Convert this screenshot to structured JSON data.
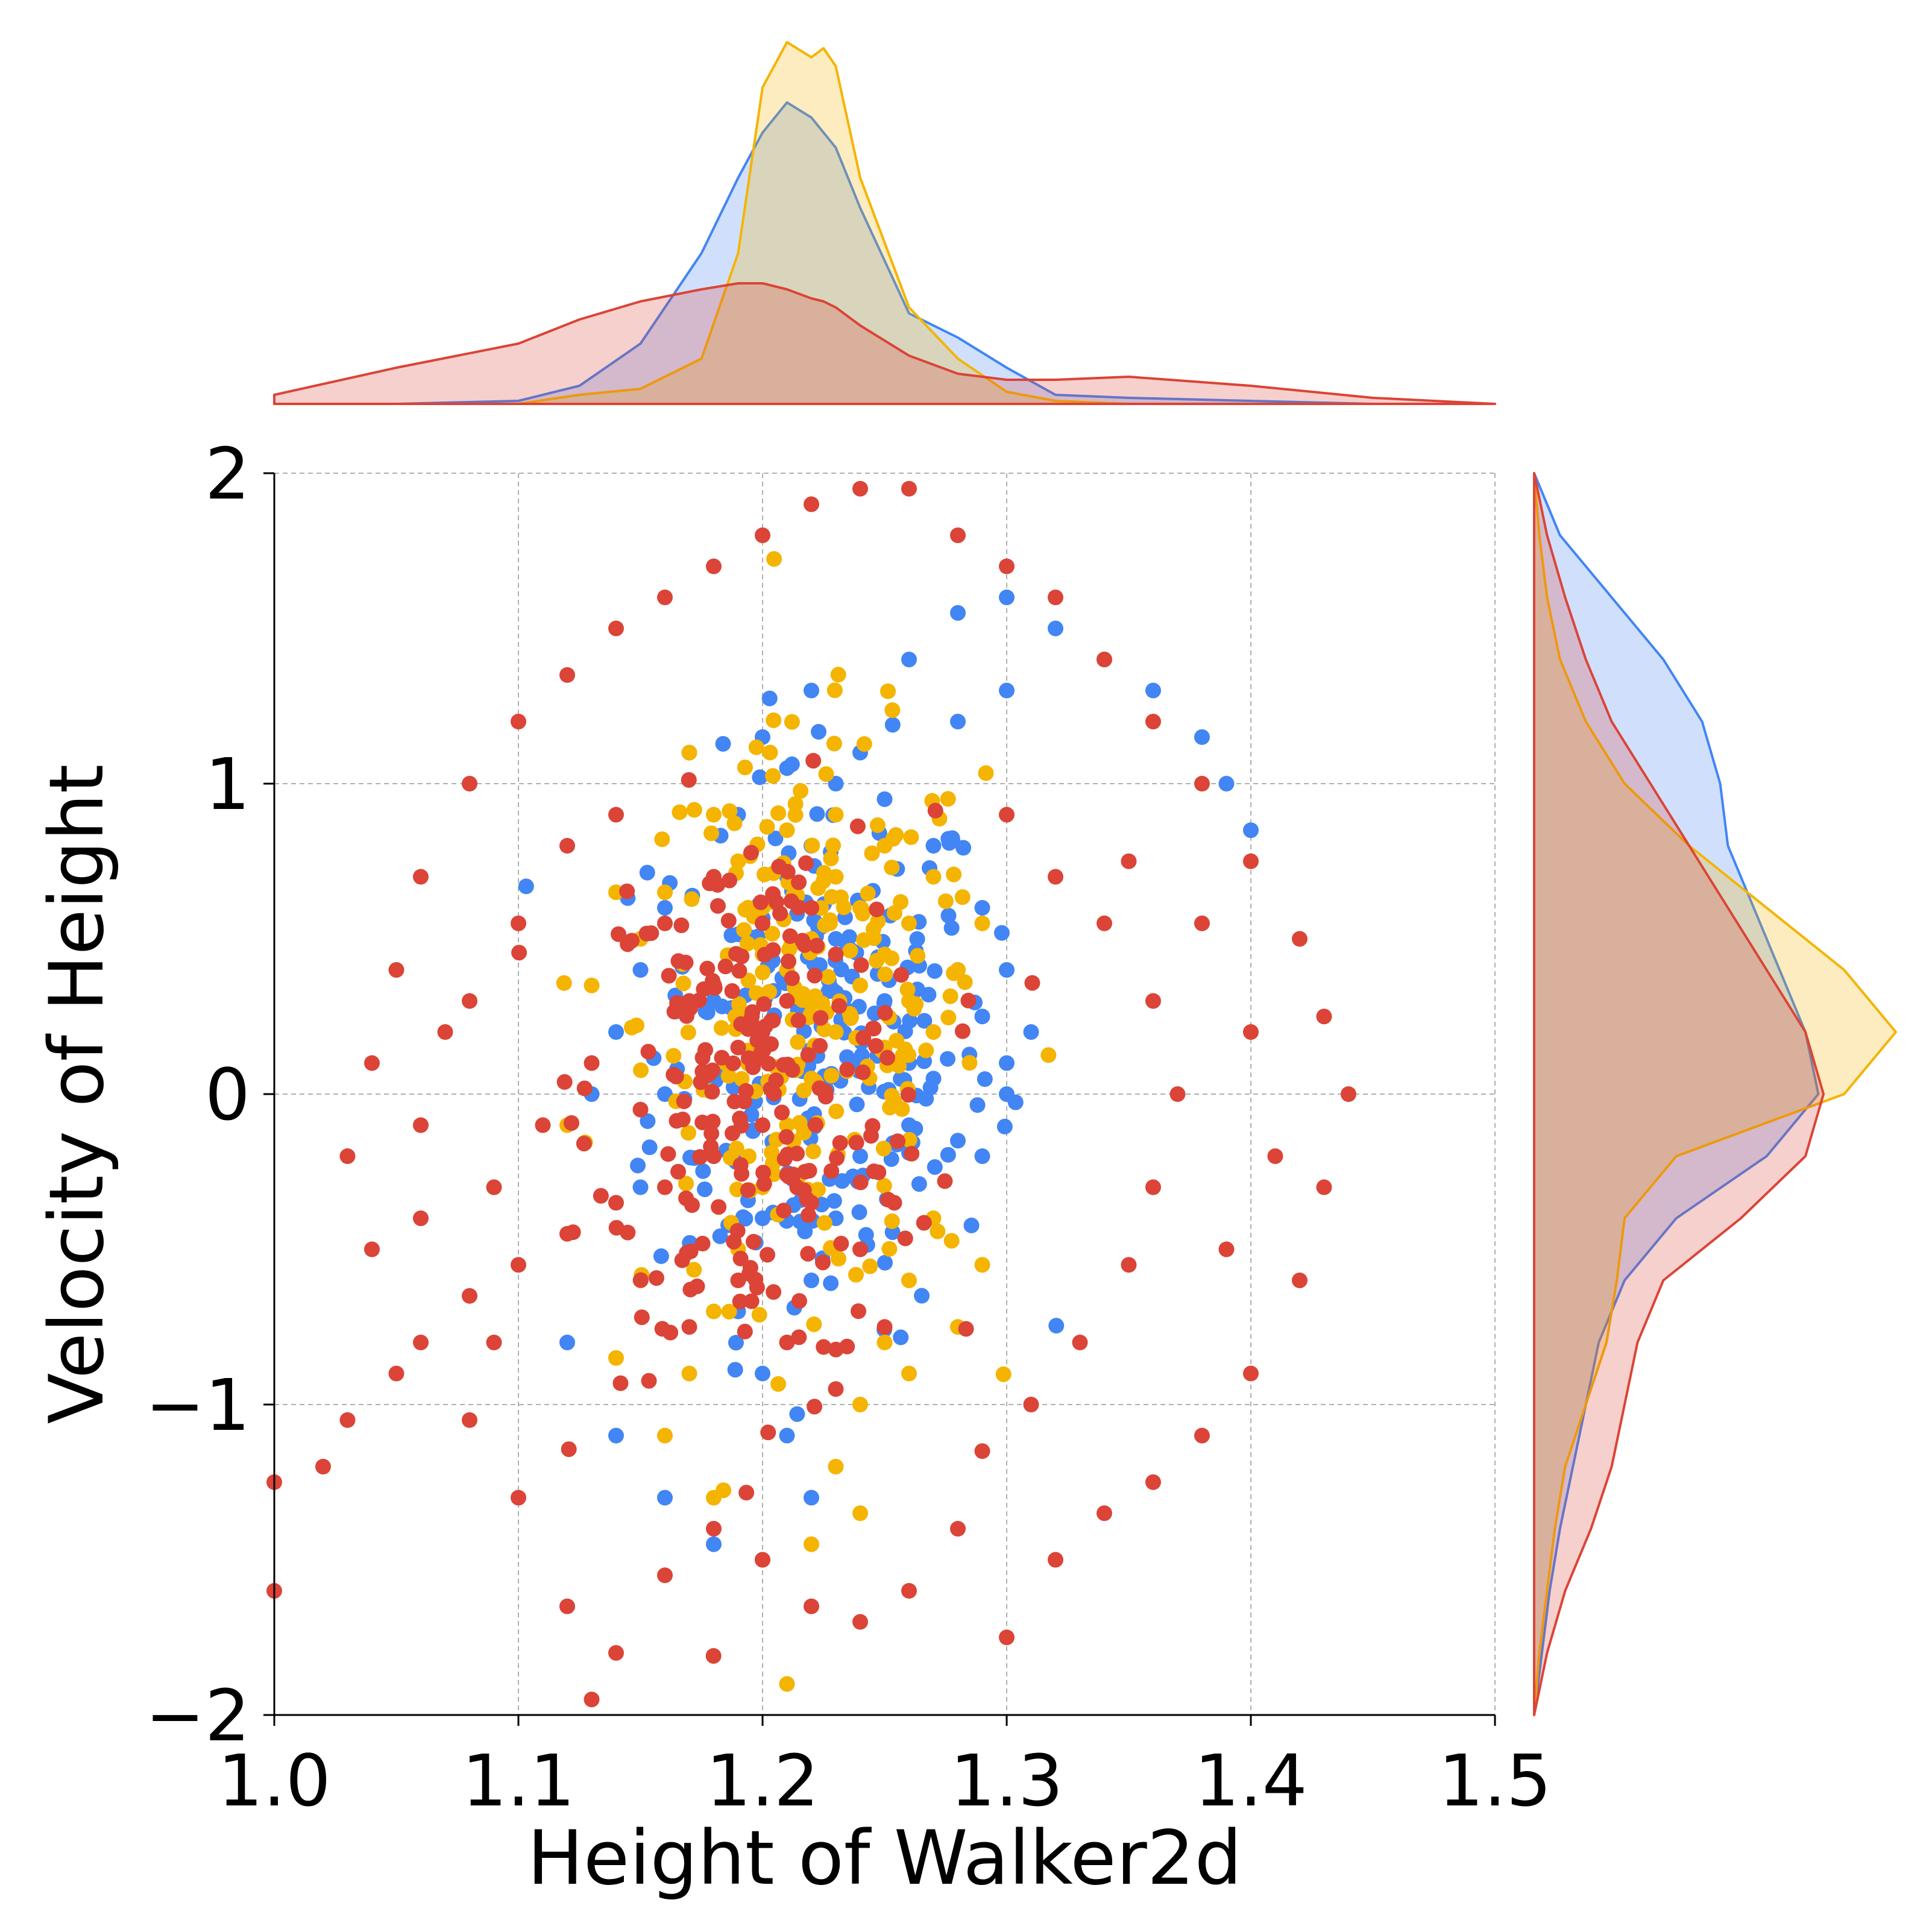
{
  "chart_data": {
    "type": "scatter",
    "xlabel": "Height of Walker2d",
    "ylabel": "Velocity of Height",
    "xlim": [
      1.0,
      1.5
    ],
    "ylim": [
      -2,
      2
    ],
    "xticks": [
      1.0,
      1.1,
      1.2,
      1.3,
      1.4,
      1.5
    ],
    "xtick_labels": [
      "1.0",
      "1.1",
      "1.2",
      "1.3",
      "1.4",
      "1.5"
    ],
    "yticks": [
      -2,
      -1,
      0,
      1,
      2
    ],
    "ytick_labels": [
      "−2",
      "−1",
      "0",
      "1",
      "2"
    ],
    "grid": true,
    "grid_style": "dashed",
    "marginals": "kde",
    "series": [
      {
        "color": "#4285F4",
        "center": {
          "x": 1.225,
          "y": 0.15
        },
        "points": [
          [
            1.26,
            1.4
          ],
          [
            1.28,
            1.55
          ],
          [
            1.3,
            1.6
          ],
          [
            1.32,
            1.5
          ],
          [
            1.34,
            1.4
          ],
          [
            1.36,
            1.3
          ],
          [
            1.38,
            1.15
          ],
          [
            1.39,
            1.0
          ],
          [
            1.4,
            0.85
          ],
          [
            1.3,
            1.3
          ],
          [
            1.28,
            1.2
          ],
          [
            1.24,
            1.1
          ],
          [
            1.22,
            1.3
          ],
          [
            1.2,
            1.15
          ],
          [
            1.21,
            1.05
          ],
          [
            1.23,
            1.0
          ],
          [
            1.25,
            0.95
          ],
          [
            1.27,
            0.8
          ],
          [
            1.29,
            0.6
          ],
          [
            1.3,
            0.4
          ],
          [
            1.31,
            0.2
          ],
          [
            1.3,
            0.0
          ],
          [
            1.29,
            -0.2
          ],
          [
            1.28,
            -0.15
          ],
          [
            1.26,
            0.1
          ],
          [
            1.25,
            0.3
          ],
          [
            1.23,
            0.5
          ],
          [
            1.21,
            0.7
          ],
          [
            1.19,
            0.9
          ],
          [
            1.17,
            1.1
          ],
          [
            1.16,
            0.6
          ],
          [
            1.15,
            0.4
          ],
          [
            1.14,
            0.2
          ],
          [
            1.13,
            0.0
          ],
          [
            1.15,
            -0.3
          ],
          [
            1.17,
            -0.5
          ],
          [
            1.19,
            -0.7
          ],
          [
            1.2,
            -0.9
          ],
          [
            1.21,
            -1.1
          ],
          [
            1.22,
            -1.3
          ],
          [
            1.2,
            -1.5
          ],
          [
            1.18,
            -1.45
          ],
          [
            1.16,
            -1.3
          ],
          [
            1.14,
            -1.1
          ],
          [
            1.12,
            -0.8
          ],
          [
            1.18,
            -0.2
          ],
          [
            1.2,
            -0.4
          ],
          [
            1.22,
            -0.6
          ],
          [
            1.24,
            -0.2
          ],
          [
            1.26,
            -0.1
          ],
          [
            1.27,
            0.05
          ],
          [
            1.29,
            0.25
          ],
          [
            1.3,
            0.1
          ],
          [
            1.28,
            0.4
          ],
          [
            1.24,
            0.6
          ],
          [
            1.22,
            0.8
          ],
          [
            1.18,
            0.3
          ],
          [
            1.16,
            0.0
          ],
          [
            1.2,
            0.2
          ],
          [
            1.23,
            -0.4
          ]
        ]
      },
      {
        "color": "#F4B400",
        "center": {
          "x": 1.22,
          "y": 0.25
        },
        "points": [
          [
            1.21,
            0.4
          ],
          [
            1.22,
            0.3
          ],
          [
            1.23,
            0.2
          ],
          [
            1.24,
            0.35
          ],
          [
            1.25,
            0.45
          ],
          [
            1.26,
            0.3
          ],
          [
            1.27,
            0.2
          ],
          [
            1.28,
            0.4
          ],
          [
            1.29,
            0.55
          ],
          [
            1.2,
            0.6
          ],
          [
            1.19,
            0.75
          ],
          [
            1.18,
            0.9
          ],
          [
            1.17,
            1.1
          ],
          [
            1.16,
            0.65
          ],
          [
            1.15,
            0.5
          ],
          [
            1.22,
            0.5
          ],
          [
            1.23,
            0.7
          ],
          [
            1.24,
            0.6
          ],
          [
            1.25,
            0.15
          ],
          [
            1.22,
            0.05
          ],
          [
            1.21,
            -0.1
          ],
          [
            1.2,
            -0.3
          ],
          [
            1.19,
            -0.5
          ],
          [
            1.18,
            -0.7
          ],
          [
            1.17,
            -0.9
          ],
          [
            1.16,
            -1.1
          ],
          [
            1.18,
            -1.3
          ],
          [
            1.2,
            -1.5
          ],
          [
            1.22,
            -1.45
          ],
          [
            1.23,
            -1.2
          ],
          [
            1.24,
            -1.0
          ],
          [
            1.25,
            -0.8
          ],
          [
            1.26,
            -0.6
          ],
          [
            1.27,
            -0.4
          ],
          [
            1.29,
            -0.55
          ],
          [
            1.28,
            -0.75
          ],
          [
            1.26,
            -0.9
          ],
          [
            1.21,
            -1.9
          ],
          [
            1.24,
            -1.35
          ],
          [
            1.14,
            0.65
          ],
          [
            1.13,
            0.35
          ],
          [
            1.12,
            -0.1
          ],
          [
            1.15,
            -0.6
          ],
          [
            1.14,
            -0.85
          ],
          [
            1.26,
            0.55
          ],
          [
            1.27,
            0.7
          ],
          [
            1.25,
            0.8
          ],
          [
            1.23,
            0.9
          ],
          [
            1.21,
            0.85
          ],
          [
            1.2,
            0.45
          ]
        ]
      },
      {
        "color": "#DB4437",
        "center": {
          "x": 1.2,
          "y": 0.0
        },
        "points": [
          [
            1.0,
            -1.6
          ],
          [
            1.0,
            -1.25
          ],
          [
            1.02,
            -1.2
          ],
          [
            1.03,
            -1.05
          ],
          [
            1.05,
            -0.9
          ],
          [
            1.06,
            -0.8
          ],
          [
            1.08,
            -0.65
          ],
          [
            1.1,
            -0.55
          ],
          [
            1.12,
            -0.45
          ],
          [
            1.14,
            -0.35
          ],
          [
            1.16,
            -0.3
          ],
          [
            1.18,
            -0.2
          ],
          [
            1.2,
            -0.1
          ],
          [
            1.04,
            -0.5
          ],
          [
            1.03,
            -0.2
          ],
          [
            1.04,
            0.1
          ],
          [
            1.05,
            0.4
          ],
          [
            1.06,
            0.7
          ],
          [
            1.08,
            1.0
          ],
          [
            1.1,
            1.2
          ],
          [
            1.12,
            1.35
          ],
          [
            1.14,
            1.5
          ],
          [
            1.16,
            1.6
          ],
          [
            1.18,
            1.7
          ],
          [
            1.2,
            1.8
          ],
          [
            1.22,
            1.9
          ],
          [
            1.24,
            1.95
          ],
          [
            1.26,
            1.95
          ],
          [
            1.28,
            1.8
          ],
          [
            1.3,
            1.7
          ],
          [
            1.32,
            1.6
          ],
          [
            1.34,
            1.4
          ],
          [
            1.36,
            1.2
          ],
          [
            1.38,
            1.0
          ],
          [
            1.4,
            0.75
          ],
          [
            1.42,
            0.5
          ],
          [
            1.43,
            0.25
          ],
          [
            1.44,
            0.0
          ],
          [
            1.43,
            -0.3
          ],
          [
            1.42,
            -0.6
          ],
          [
            1.4,
            -0.9
          ],
          [
            1.38,
            -1.1
          ],
          [
            1.36,
            -1.25
          ],
          [
            1.34,
            -1.35
          ],
          [
            1.32,
            -1.5
          ],
          [
            1.3,
            -1.75
          ],
          [
            1.28,
            -1.4
          ],
          [
            1.26,
            -1.6
          ],
          [
            1.24,
            -1.7
          ],
          [
            1.22,
            -1.65
          ],
          [
            1.2,
            -1.5
          ],
          [
            1.18,
            -1.4
          ],
          [
            1.16,
            -1.55
          ],
          [
            1.14,
            -1.8
          ],
          [
            1.12,
            -1.65
          ],
          [
            1.13,
            -1.95
          ],
          [
            1.1,
            -1.3
          ],
          [
            1.08,
            -1.05
          ],
          [
            1.06,
            -0.1
          ],
          [
            1.07,
            0.2
          ],
          [
            1.09,
            -0.3
          ],
          [
            1.11,
            -0.1
          ],
          [
            1.13,
            0.1
          ],
          [
            1.15,
            -0.05
          ],
          [
            1.17,
            0.3
          ],
          [
            1.19,
            0.15
          ],
          [
            1.21,
            0.3
          ],
          [
            1.23,
            0.45
          ],
          [
            1.22,
            -0.35
          ],
          [
            1.24,
            -0.5
          ],
          [
            1.25,
            -0.75
          ],
          [
            1.23,
            -0.95
          ],
          [
            1.21,
            -0.8
          ],
          [
            1.19,
            -0.6
          ],
          [
            1.17,
            -0.75
          ],
          [
            1.16,
            0.55
          ],
          [
            1.18,
            0.7
          ],
          [
            1.2,
            0.55
          ],
          [
            1.22,
            0.6
          ],
          [
            1.3,
            0.9
          ],
          [
            1.32,
            0.7
          ],
          [
            1.34,
            0.55
          ],
          [
            1.36,
            0.3
          ],
          [
            1.37,
            0.0
          ],
          [
            1.36,
            -0.3
          ],
          [
            1.35,
            -0.55
          ],
          [
            1.33,
            -0.8
          ],
          [
            1.31,
            -1.0
          ],
          [
            1.29,
            -1.15
          ],
          [
            1.35,
            0.75
          ],
          [
            1.38,
            0.55
          ],
          [
            1.4,
            0.2
          ],
          [
            1.41,
            -0.2
          ],
          [
            1.39,
            -0.5
          ],
          [
            1.1,
            0.55
          ],
          [
            1.12,
            0.8
          ],
          [
            1.14,
            0.9
          ],
          [
            1.08,
            0.3
          ],
          [
            1.06,
            -0.4
          ],
          [
            1.09,
            -0.8
          ]
        ]
      }
    ],
    "marginal_x_kde": {
      "x": [
        1.0,
        1.05,
        1.1,
        1.125,
        1.15,
        1.175,
        1.19,
        1.2,
        1.21,
        1.22,
        1.225,
        1.23,
        1.24,
        1.26,
        1.28,
        1.3,
        1.32,
        1.35,
        1.4,
        1.45,
        1.5
      ],
      "series": [
        {
          "color": "#4285F4",
          "density": [
            0.0,
            0.0,
            0.01,
            0.06,
            0.2,
            0.5,
            0.75,
            0.9,
            1.0,
            0.95,
            0.9,
            0.85,
            0.65,
            0.3,
            0.22,
            0.12,
            0.03,
            0.02,
            0.01,
            0.0,
            0.0
          ]
        },
        {
          "color": "#F4B400",
          "density": [
            0.0,
            0.0,
            0.0,
            0.03,
            0.05,
            0.15,
            0.5,
            1.05,
            1.2,
            1.15,
            1.18,
            1.12,
            0.75,
            0.32,
            0.15,
            0.04,
            0.01,
            0.0,
            0.0,
            0.0,
            0.0
          ]
        },
        {
          "color": "#DB4437",
          "density": [
            0.03,
            0.12,
            0.2,
            0.28,
            0.34,
            0.38,
            0.4,
            0.4,
            0.38,
            0.35,
            0.34,
            0.32,
            0.26,
            0.16,
            0.1,
            0.08,
            0.08,
            0.09,
            0.06,
            0.02,
            0.0
          ]
        }
      ]
    },
    "marginal_y_kde": {
      "y": [
        2.0,
        1.8,
        1.6,
        1.4,
        1.2,
        1.0,
        0.8,
        0.6,
        0.4,
        0.2,
        0.0,
        -0.2,
        -0.4,
        -0.6,
        -0.8,
        -1.0,
        -1.2,
        -1.4,
        -1.6,
        -1.8,
        -2.0
      ],
      "series": [
        {
          "color": "#4285F4",
          "density": [
            0.0,
            0.1,
            0.3,
            0.5,
            0.65,
            0.72,
            0.75,
            0.85,
            0.95,
            1.05,
            1.1,
            0.9,
            0.55,
            0.35,
            0.25,
            0.2,
            0.15,
            0.1,
            0.06,
            0.03,
            0.0
          ]
        },
        {
          "color": "#F4B400",
          "density": [
            0.0,
            0.02,
            0.05,
            0.1,
            0.2,
            0.35,
            0.6,
            0.9,
            1.2,
            1.4,
            1.2,
            0.55,
            0.35,
            0.32,
            0.28,
            0.2,
            0.12,
            0.08,
            0.05,
            0.02,
            0.0
          ]
        },
        {
          "color": "#DB4437",
          "density": [
            0.0,
            0.05,
            0.12,
            0.2,
            0.3,
            0.45,
            0.6,
            0.75,
            0.9,
            1.05,
            1.12,
            1.05,
            0.8,
            0.5,
            0.4,
            0.35,
            0.3,
            0.22,
            0.12,
            0.05,
            0.0
          ]
        }
      ]
    }
  }
}
